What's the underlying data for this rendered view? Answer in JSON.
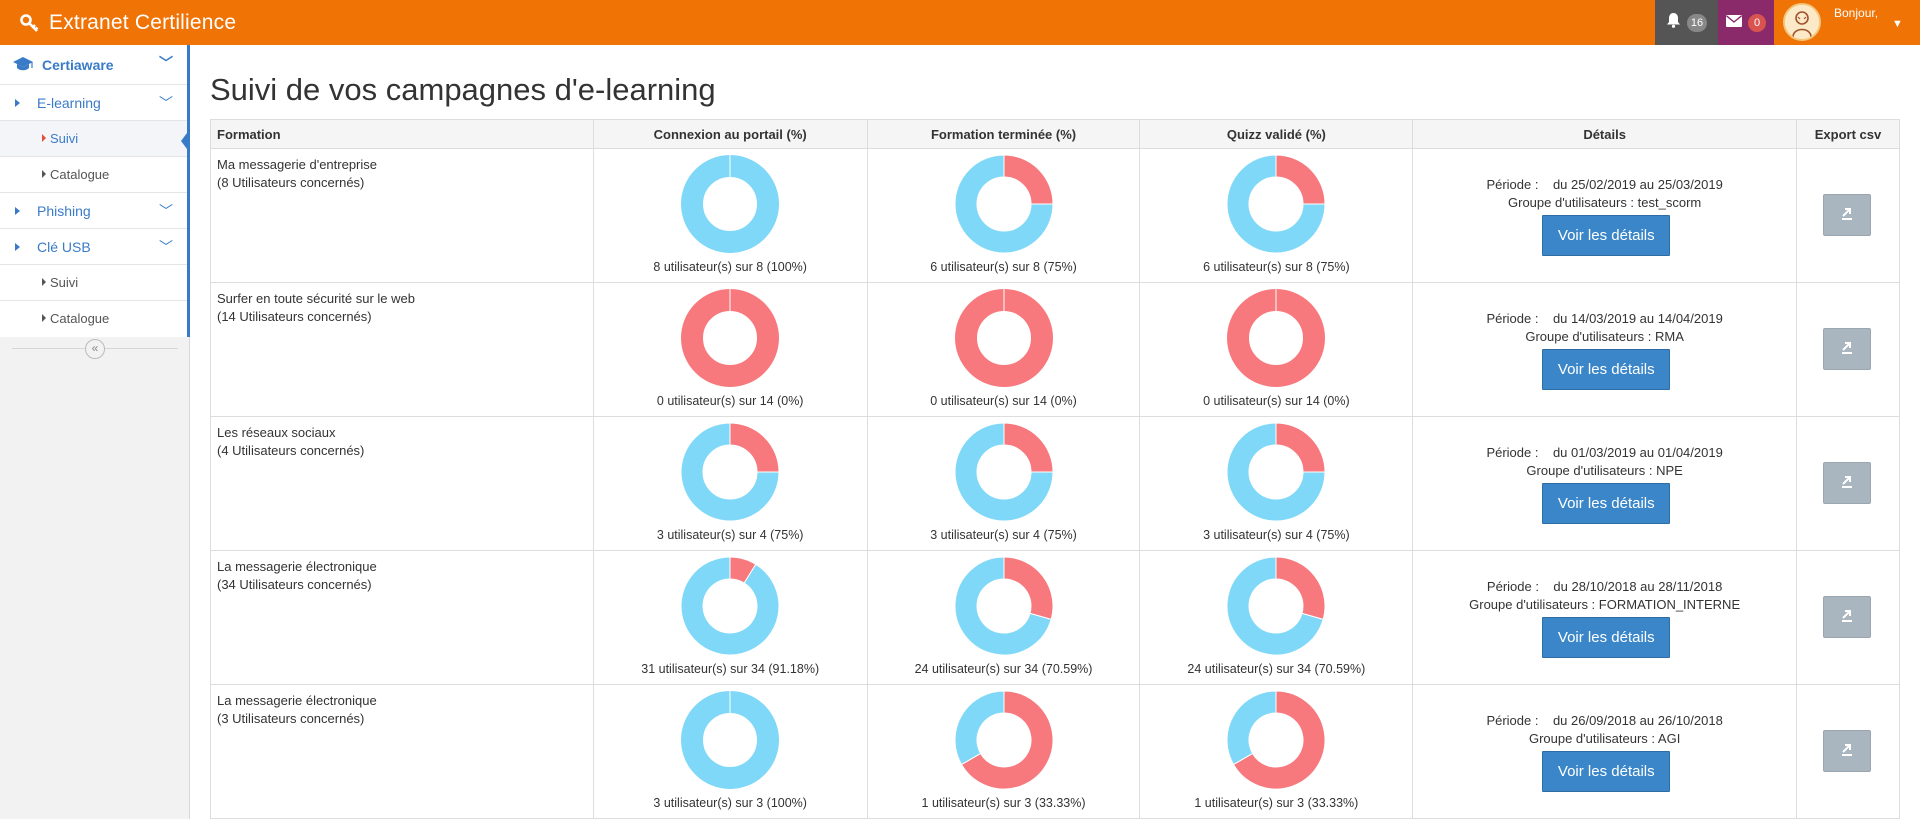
{
  "app": {
    "title": "Extranet Certilience"
  },
  "topbar": {
    "notifications_count": "16",
    "messages_count": "0",
    "greeting": "Bonjour,"
  },
  "sidebar": {
    "header": "Certiaware",
    "sections": [
      {
        "label": "E-learning",
        "items": [
          "Suivi",
          "Catalogue"
        ]
      },
      {
        "label": "Phishing",
        "items": []
      },
      {
        "label": "Clé USB",
        "items": [
          "Suivi",
          "Catalogue"
        ]
      }
    ],
    "active_item": "E-learning / Suivi"
  },
  "page": {
    "title": "Suivi de vos campagnes d'e-learning"
  },
  "table": {
    "headers": [
      "Formation",
      "Connexion au portail (%)",
      "Formation terminée (%)",
      "Quizz validé (%)",
      "Détails",
      "Export csv"
    ],
    "detail_button_label": "Voir les détails",
    "periode_label": "Période :",
    "groupe_label": "Groupe d'utilisateurs :",
    "rows": [
      {
        "formation": "Ma messagerie d'entreprise",
        "users": "(8 Utilisateurs concernés)",
        "connexion": {
          "caption": "8 utilisateur(s) sur 8 (100%)",
          "fraction": 1.0
        },
        "terminee": {
          "caption": "6 utilisateur(s) sur 8 (75%)",
          "fraction": 0.75
        },
        "quizz": {
          "caption": "6 utilisateur(s) sur 8 (75%)",
          "fraction": 0.75
        },
        "periode": "du 25/02/2019 au 25/03/2019",
        "groupe": "test_scorm"
      },
      {
        "formation": "Surfer en toute sécurité sur le web",
        "users": "(14 Utilisateurs concernés)",
        "connexion": {
          "caption": "0 utilisateur(s) sur 14 (0%)",
          "fraction": 0.0
        },
        "terminee": {
          "caption": "0 utilisateur(s) sur 14 (0%)",
          "fraction": 0.0
        },
        "quizz": {
          "caption": "0 utilisateur(s) sur 14 (0%)",
          "fraction": 0.0
        },
        "periode": "du 14/03/2019 au 14/04/2019",
        "groupe": "RMA"
      },
      {
        "formation": "Les réseaux sociaux",
        "users": "(4 Utilisateurs concernés)",
        "connexion": {
          "caption": "3 utilisateur(s) sur 4 (75%)",
          "fraction": 0.75
        },
        "terminee": {
          "caption": "3 utilisateur(s) sur 4 (75%)",
          "fraction": 0.75
        },
        "quizz": {
          "caption": "3 utilisateur(s) sur 4 (75%)",
          "fraction": 0.75
        },
        "periode": "du 01/03/2019 au 01/04/2019",
        "groupe": "NPE"
      },
      {
        "formation": "La messagerie électronique",
        "users": "(34 Utilisateurs concernés)",
        "connexion": {
          "caption": "31 utilisateur(s) sur 34 (91.18%)",
          "fraction": 0.9118
        },
        "terminee": {
          "caption": "24 utilisateur(s) sur 34 (70.59%)",
          "fraction": 0.7059
        },
        "quizz": {
          "caption": "24 utilisateur(s) sur 34 (70.59%)",
          "fraction": 0.7059
        },
        "periode": "du 28/10/2018 au 28/11/2018",
        "groupe": "FORMATION_INTERNE"
      },
      {
        "formation": "La messagerie électronique",
        "users": "(3 Utilisateurs concernés)",
        "connexion": {
          "caption": "3 utilisateur(s) sur 3 (100%)",
          "fraction": 1.0
        },
        "terminee": {
          "caption": "1 utilisateur(s) sur 3 (33.33%)",
          "fraction": 0.3333
        },
        "quizz": {
          "caption": "1 utilisateur(s) sur 3 (33.33%)",
          "fraction": 0.3333
        },
        "periode": "du 26/09/2018 au 26/10/2018",
        "groupe": "AGI"
      }
    ]
  },
  "colors": {
    "topbar": "#f07306",
    "done": "#7fd8f7",
    "not_done": "#f7797d",
    "primary_button": "#3a86c8",
    "export_button": "#a9b5bf",
    "link": "#3a7bc8"
  },
  "icons": {
    "brand": "key-icon",
    "notifications": "bell-icon",
    "messages": "envelope-icon",
    "sidebar_header": "graduation-cap-icon",
    "collapse": "double-chevron-left-icon",
    "export": "export-arrow-icon"
  }
}
